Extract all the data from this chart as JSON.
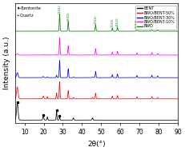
{
  "title": "",
  "xlabel": "2θ(°)",
  "ylabel": "Intensity (a.u.)",
  "xlim": [
    5,
    90
  ],
  "legend_entries": [
    "BENT",
    "BWO/BENT-50%",
    "BWO/BENT-30%",
    "BWO/BENT-10%",
    "BWO"
  ],
  "legend_colors": [
    "black",
    "red",
    "blue",
    "magenta",
    "green"
  ],
  "peak_labels": [
    "(131)",
    "(002)",
    "(202)",
    "(133)",
    "(262)",
    "(004)",
    "(333)",
    "(460)"
  ],
  "peak_positions": [
    28.3,
    32.8,
    47.1,
    55.8,
    58.5,
    68.7,
    76.5,
    79.5
  ],
  "annotation_color": "green",
  "marker_labels": [
    "♦-Bentonite",
    "•-Quartz"
  ],
  "background_color": "white",
  "offsets": [
    0.0,
    0.16,
    0.32,
    0.49,
    0.67
  ]
}
